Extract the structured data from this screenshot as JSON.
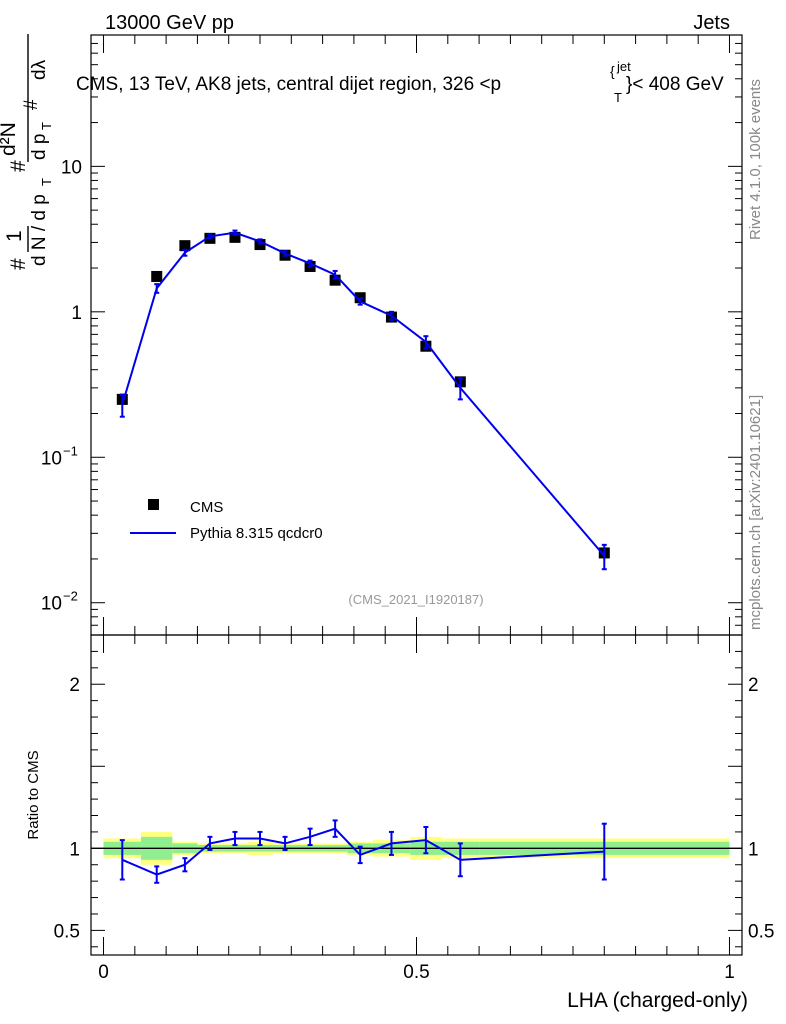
{
  "header": {
    "left_label": "13000 GeV pp",
    "right_label": "Jets"
  },
  "side_labels": {
    "rivet": "Rivet 4.1.0,  100k events",
    "mcplots": "mcplots.cern.ch [arXiv:2401.10621]"
  },
  "main_plot": {
    "title": "CMS, 13 TeV, AK8 jets, central dijet region, 326 <p",
    "title_sup": "jet",
    "title_sub": "T",
    "title_tail": "}< 408 GeV",
    "title_brace": "{",
    "ylabel": "# 1/dN/dp_T # d²N/dp_T dλ",
    "analysis_id": "(CMS_2021_I1920187)",
    "y_scale": "log",
    "ylim": [
      0.006,
      80
    ],
    "ytick_labels": [
      {
        "value": 10,
        "label": "10"
      },
      {
        "value": 1,
        "label": "1"
      },
      {
        "value": 0.1,
        "label": "10",
        "exp": "−1"
      },
      {
        "value": 0.01,
        "label": "10",
        "exp": "−2"
      }
    ],
    "legend": {
      "placement": "lower-left",
      "data_label": "CMS",
      "mc_label": "Pythia 8.315 qcdcr0"
    }
  },
  "ratio_plot": {
    "ylabel": "Ratio to CMS",
    "ylim": [
      0.35,
      2.3
    ],
    "ytick_labels": [
      {
        "value": 2,
        "label": "2"
      },
      {
        "value": 1,
        "label": "1"
      },
      {
        "value": 0.5,
        "label": "0.5"
      }
    ]
  },
  "x_axis": {
    "label": "LHA (charged-only)",
    "xlim": [
      -0.02,
      1.02
    ],
    "tick_labels": [
      {
        "value": 0,
        "label": "0"
      },
      {
        "value": 0.5,
        "label": "0.5"
      },
      {
        "value": 1,
        "label": "1"
      }
    ]
  },
  "colors": {
    "data": "#000000",
    "mc": "#0000ee",
    "band_inner": "#90ee90",
    "band_outer": "#ffff80"
  },
  "chart_data": {
    "type": "scatter",
    "title": "CMS, 13 TeV, AK8 jets, central dijet region, 326 < pT jet < 408 GeV",
    "xlabel": "LHA (charged-only)",
    "ylabel": "1/dN/dpT d2N/dpT dlambda",
    "series": [
      {
        "name": "CMS",
        "bins": [
          [
            0,
            0.06
          ],
          [
            0.06,
            0.11
          ],
          [
            0.11,
            0.15
          ],
          [
            0.15,
            0.19
          ],
          [
            0.19,
            0.23
          ],
          [
            0.23,
            0.27
          ],
          [
            0.27,
            0.31
          ],
          [
            0.31,
            0.35
          ],
          [
            0.35,
            0.39
          ],
          [
            0.39,
            0.43
          ],
          [
            0.43,
            0.49
          ],
          [
            0.49,
            0.54
          ],
          [
            0.54,
            0.6
          ],
          [
            0.6,
            1.0
          ]
        ],
        "x": [
          0.03,
          0.085,
          0.13,
          0.17,
          0.21,
          0.25,
          0.29,
          0.33,
          0.37,
          0.41,
          0.46,
          0.515,
          0.57,
          0.8
        ],
        "y": [
          0.25,
          1.75,
          2.85,
          3.2,
          3.25,
          2.9,
          2.45,
          2.05,
          1.65,
          1.25,
          0.92,
          0.58,
          0.33,
          0.022
        ],
        "rel_err_inner": [
          0.04,
          0.07,
          0.03,
          0.02,
          0.02,
          0.02,
          0.02,
          0.02,
          0.02,
          0.03,
          0.03,
          0.04,
          0.04,
          0.04
        ],
        "rel_err_outer": [
          0.06,
          0.1,
          0.04,
          0.03,
          0.03,
          0.04,
          0.03,
          0.03,
          0.03,
          0.04,
          0.05,
          0.07,
          0.06,
          0.06
        ]
      },
      {
        "name": "Pythia 8.315 qcdcr0",
        "x": [
          0.03,
          0.085,
          0.13,
          0.17,
          0.21,
          0.25,
          0.29,
          0.33,
          0.37,
          0.41,
          0.46,
          0.515,
          0.57,
          0.8
        ],
        "y": [
          0.23,
          1.45,
          2.55,
          3.3,
          3.5,
          3.05,
          2.52,
          2.15,
          1.8,
          1.18,
          0.94,
          0.62,
          0.3,
          0.021
        ],
        "y_err_low": [
          0.04,
          0.1,
          0.12,
          0.1,
          0.12,
          0.1,
          0.09,
          0.1,
          0.11,
          0.06,
          0.06,
          0.06,
          0.05,
          0.004
        ],
        "y_err_high": [
          0.04,
          0.1,
          0.12,
          0.1,
          0.12,
          0.1,
          0.09,
          0.1,
          0.11,
          0.06,
          0.06,
          0.06,
          0.05,
          0.004
        ],
        "ratio": [
          0.93,
          0.84,
          0.9,
          1.03,
          1.06,
          1.06,
          1.03,
          1.07,
          1.12,
          0.96,
          1.03,
          1.05,
          0.93,
          0.98
        ],
        "ratio_err": [
          0.12,
          0.05,
          0.04,
          0.04,
          0.04,
          0.04,
          0.04,
          0.05,
          0.05,
          0.05,
          0.07,
          0.08,
          0.1,
          0.17
        ]
      }
    ]
  }
}
